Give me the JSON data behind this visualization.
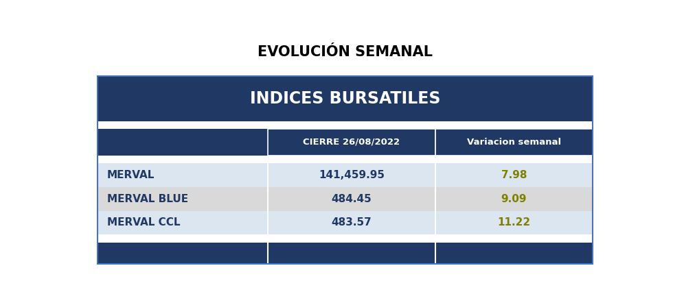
{
  "title": "EVOLUCIÓN SEMANAL",
  "table_header": "INDICES BURSATILES",
  "col1_header": "CIERRE 26/08/2022",
  "col2_header": "Variacion semanal",
  "rows": [
    {
      "name": "MERVAL",
      "cierre": "141,459.95",
      "variacion": "7.98",
      "row_bg": "#dce6f1"
    },
    {
      "name": "MERVAL BLUE",
      "cierre": "484.45",
      "variacion": "9.09",
      "row_bg": "#d9d9d9"
    },
    {
      "name": "MERVAL CCL",
      "cierre": "483.57",
      "variacion": "11.22",
      "row_bg": "#dce6f1"
    }
  ],
  "dark_navy": "#1f3864",
  "header_text": "#ffffff",
  "col_header_text": "#ffffff",
  "name_text": "#1f3864",
  "cierre_text": "#1f3864",
  "variacion_text": "#808000",
  "title_color": "#000000",
  "outer_border": "#4472c4",
  "white_bg": "#ffffff"
}
